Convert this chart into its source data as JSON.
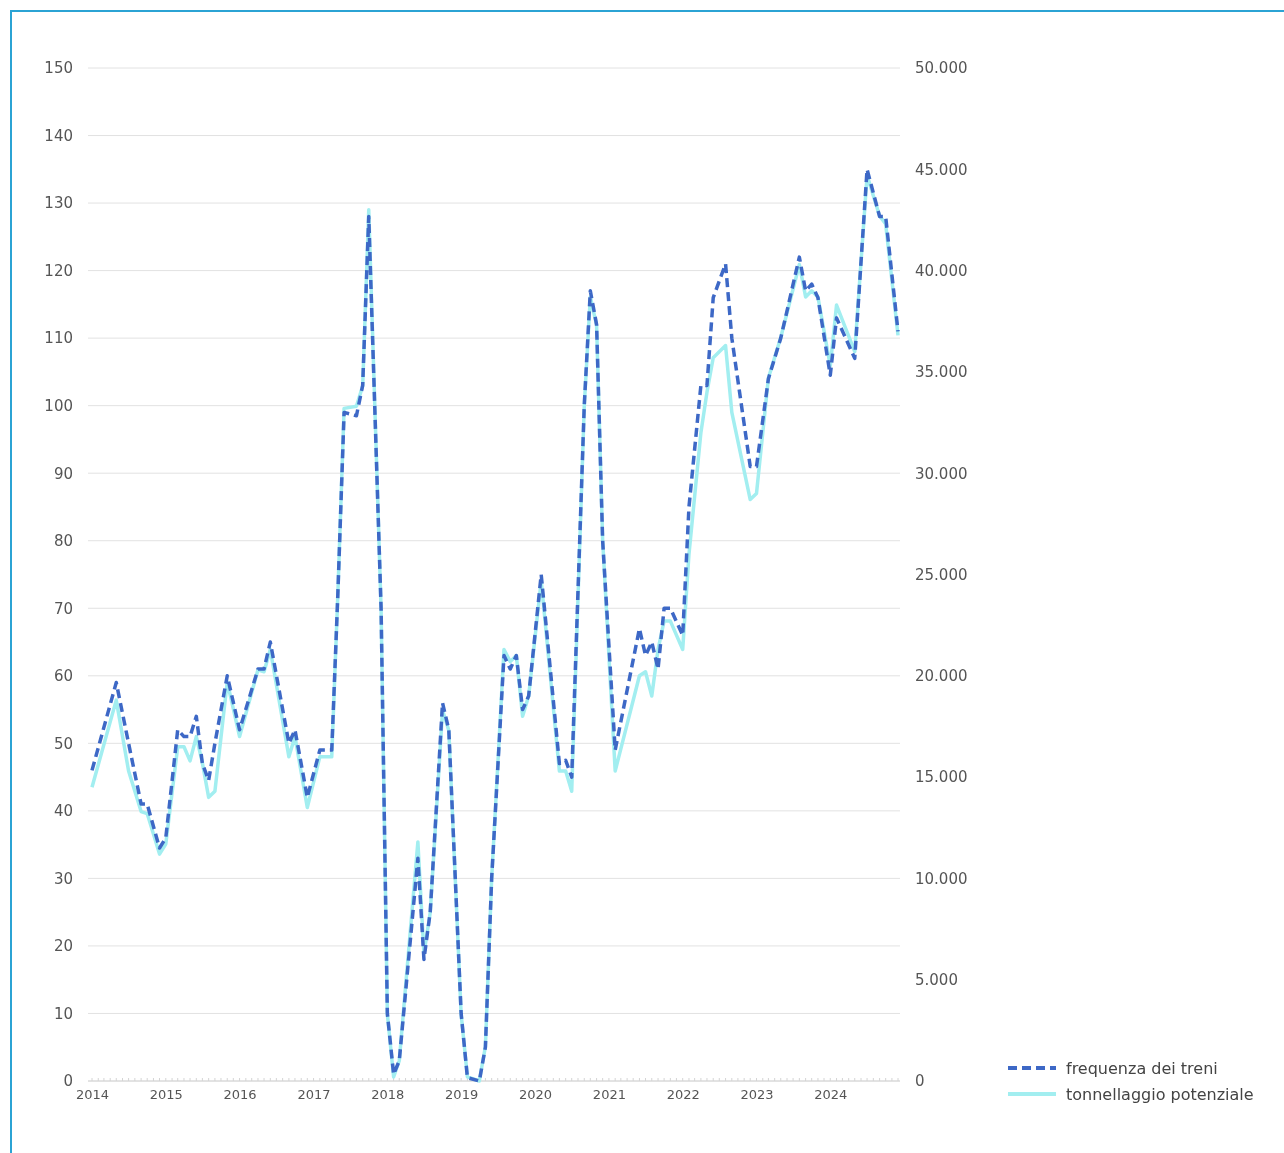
{
  "chart_data": {
    "type": "line",
    "x": [
      "2014-01",
      "2014-05",
      "2014-07",
      "2014-09",
      "2014-10",
      "2014-12",
      "2015-01",
      "2015-03",
      "2015-04",
      "2015-05",
      "2015-06",
      "2015-07",
      "2015-08",
      "2015-09",
      "2015-11",
      "2016-01",
      "2016-04",
      "2016-05",
      "2016-06",
      "2016-09",
      "2016-10",
      "2016-12",
      "2017-02",
      "2017-04",
      "2017-05",
      "2017-06",
      "2017-08",
      "2017-09",
      "2017-10",
      "2017-12",
      "2018-01",
      "2018-02",
      "2018-03",
      "2018-06",
      "2018-07",
      "2018-08",
      "2018-10",
      "2018-11",
      "2019-01",
      "2019-02",
      "2019-04",
      "2019-05",
      "2019-06",
      "2019-08",
      "2019-09",
      "2019-10",
      "2019-11",
      "2019-12",
      "2020-02",
      "2020-05",
      "2020-06",
      "2020-07",
      "2020-09",
      "2020-10",
      "2020-11",
      "2020-12",
      "2021-02",
      "2021-06",
      "2021-07",
      "2021-08",
      "2021-09",
      "2021-10",
      "2021-11",
      "2022-01",
      "2022-02",
      "2022-04",
      "2022-05",
      "2022-06",
      "2022-08",
      "2022-09",
      "2022-12",
      "2023-01",
      "2023-03",
      "2023-05",
      "2023-08",
      "2023-09",
      "2023-10",
      "2023-11",
      "2024-01",
      "2024-02",
      "2024-05",
      "2024-07",
      "2024-09",
      "2024-10",
      "2024-12"
    ],
    "series": [
      {
        "name": "frequenza dei treni",
        "color": "#3d68c6",
        "line_style": "dashed",
        "values": [
          46,
          59,
          50,
          41,
          41,
          34.5,
          36,
          52,
          51,
          51,
          54,
          47,
          44.5,
          50,
          60,
          52,
          61,
          61,
          65,
          50,
          52,
          42,
          49,
          49,
          72,
          99,
          98.5,
          103,
          128,
          70,
          10,
          1,
          3,
          33,
          18,
          25,
          56,
          52,
          10,
          0.5,
          0,
          5,
          30,
          63,
          61,
          63,
          55,
          57,
          75,
          47,
          47.5,
          45,
          100,
          117,
          112,
          80,
          49,
          67,
          63,
          65,
          61,
          70,
          70,
          66,
          85,
          103,
          103,
          116,
          121,
          110,
          91,
          91,
          104,
          110,
          122,
          117,
          118,
          116,
          104.5,
          113,
          107,
          135,
          128,
          128,
          111
        ]
      },
      {
        "name": "tonnellaggio potenziale",
        "color": "#a2eef0",
        "line_style": "solid",
        "axis": "y2",
        "values": [
          14500,
          18800,
          15300,
          13300,
          13200,
          11200,
          11700,
          16500,
          16500,
          15800,
          17000,
          15700,
          14000,
          14300,
          19700,
          17000,
          20300,
          20200,
          21300,
          16000,
          17000,
          13500,
          16000,
          16000,
          24000,
          33200,
          33300,
          34300,
          43000,
          23300,
          3300,
          200,
          1000,
          11800,
          6300,
          8300,
          18300,
          17300,
          3300,
          200,
          0,
          1700,
          10000,
          21300,
          20700,
          21000,
          18000,
          19000,
          24700,
          15300,
          15300,
          14300,
          33300,
          38700,
          37300,
          26700,
          15300,
          20000,
          20200,
          19000,
          21300,
          22700,
          22700,
          21300,
          26000,
          32000,
          34000,
          35700,
          36300,
          33000,
          28700,
          29000,
          34700,
          36700,
          40300,
          38700,
          39000,
          38700,
          35300,
          38300,
          36000,
          44700,
          42700,
          42300,
          36800
        ]
      }
    ],
    "xlim": [
      "2014-01",
      "2024-12"
    ],
    "xticks": [
      "2014",
      "2015",
      "2016",
      "2017",
      "2018",
      "2019",
      "2020",
      "2021",
      "2022",
      "2023",
      "2024"
    ],
    "ylim": [
      0,
      150
    ],
    "yticks": [
      0,
      10,
      20,
      30,
      40,
      50,
      60,
      70,
      80,
      90,
      100,
      110,
      120,
      130,
      140,
      150
    ],
    "y2lim": [
      0,
      50000
    ],
    "y2ticks": [
      {
        "value": 0,
        "label": "0"
      },
      {
        "value": 5000,
        "label": "5.000"
      },
      {
        "value": 10000,
        "label": "10.000"
      },
      {
        "value": 15000,
        "label": "15.000"
      },
      {
        "value": 20000,
        "label": "20.000"
      },
      {
        "value": 25000,
        "label": "25.000"
      },
      {
        "value": 30000,
        "label": "30.000"
      },
      {
        "value": 35000,
        "label": "35.000"
      },
      {
        "value": 40000,
        "label": "40.000"
      },
      {
        "value": 45000,
        "label": "45.000"
      },
      {
        "value": 50000,
        "label": "50.000"
      }
    ],
    "grid": "y",
    "legend": "bottom right"
  }
}
